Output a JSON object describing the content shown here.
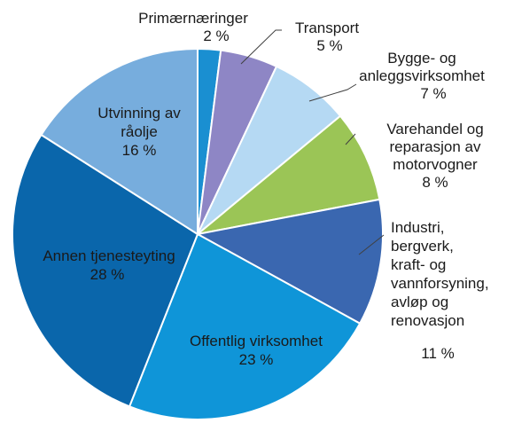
{
  "chart_data": {
    "type": "pie",
    "title": "",
    "slices": [
      {
        "label_lines": [
          "Primærnæringer"
        ],
        "pct_text": "2 %",
        "value": 2,
        "color": "#1a8fd1"
      },
      {
        "label_lines": [
          "Transport"
        ],
        "pct_text": "5 %",
        "value": 5,
        "color": "#8e86c5"
      },
      {
        "label_lines": [
          "Bygge- og",
          "anleggsvirksomhet"
        ],
        "pct_text": "7 %",
        "value": 7,
        "color": "#b5d9f3"
      },
      {
        "label_lines": [
          "Varehandel og",
          "reparasjon av",
          "motorvogner"
        ],
        "pct_text": "8 %",
        "value": 8,
        "color": "#9bc556"
      },
      {
        "label_lines": [
          "Industri,",
          "bergverk,",
          "kraft- og",
          "vannforsyning,",
          "avløp og",
          "renovasjon"
        ],
        "pct_text": "11 %",
        "value": 11,
        "color": "#3a67b0"
      },
      {
        "label_lines": [
          "Offentlig virksomhet"
        ],
        "pct_text": "23 %",
        "value": 23,
        "color": "#0f95d8"
      },
      {
        "label_lines": [
          "Annen tjenesteyting"
        ],
        "pct_text": "28 %",
        "value": 28,
        "color": "#0a66ab"
      },
      {
        "label_lines": [
          "Utvinning av",
          "råolje"
        ],
        "pct_text": "16 %",
        "value": 16,
        "color": "#77addd"
      }
    ]
  }
}
